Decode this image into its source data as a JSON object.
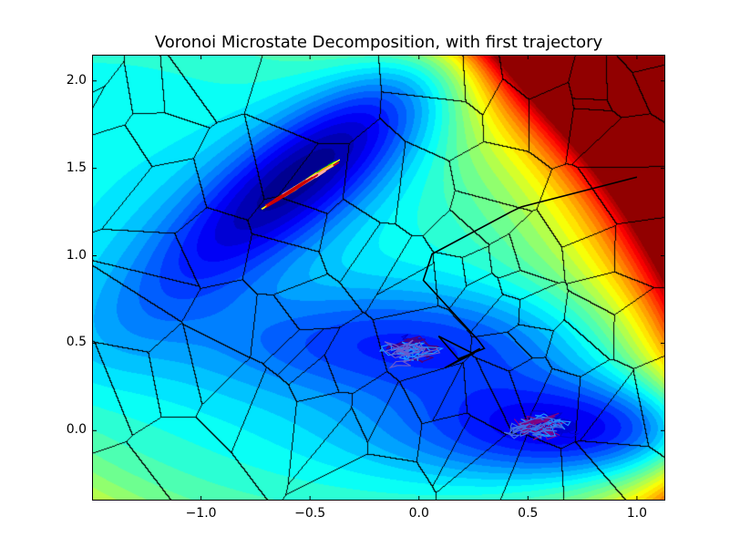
{
  "chart_data": {
    "type": "contour",
    "title": "Voronoi Microstate Decomposition, with first trajectory",
    "xlabel": "",
    "ylabel": "",
    "xlim": [
      -1.5,
      1.13
    ],
    "ylim": [
      -0.4,
      2.15
    ],
    "xticks": [
      -1.0,
      -0.5,
      0.0,
      0.5,
      1.0
    ],
    "xtick_labels": [
      "−1.0",
      "−0.5",
      "0.0",
      "0.5",
      "1.0"
    ],
    "yticks": [
      0.0,
      0.5,
      1.0,
      1.5,
      2.0
    ],
    "ytick_labels": [
      "0.0",
      "0.5",
      "1.0",
      "1.5",
      "2.0"
    ],
    "colormap": "jet",
    "color_range": [
      -150,
      300
    ],
    "grid": false,
    "legend": "none",
    "surface": "Muller-Brown potential, filled contours",
    "overlay": "Voronoi cell boundaries (black)",
    "first_trajectory": {
      "color": "#000000",
      "x": [
        1.0,
        0.47,
        0.42,
        0.06,
        0.02,
        0.27,
        0.3,
        0.18,
        0.09,
        0.25,
        0.12,
        0.28
      ],
      "y": [
        1.45,
        1.28,
        1.25,
        1.01,
        0.86,
        0.52,
        0.47,
        0.41,
        0.54,
        0.44,
        0.36,
        0.47
      ]
    },
    "trajectory_clusters": [
      {
        "center": [
          -0.55,
          1.4
        ],
        "colors": [
          "#ff0000",
          "#00cc00",
          "#ffff00",
          "#ffa500",
          "#ffaaaa",
          "#cc0000"
        ]
      },
      {
        "center": [
          0.55,
          0.02
        ],
        "colors": [
          "#8b008b",
          "#0000cd",
          "#1e90ff",
          "#800080",
          "#4169e1"
        ]
      },
      {
        "center": [
          -0.05,
          0.45
        ],
        "colors": [
          "#0000cd",
          "#4b0082",
          "#1e90ff",
          "#6a5acd"
        ]
      }
    ]
  }
}
